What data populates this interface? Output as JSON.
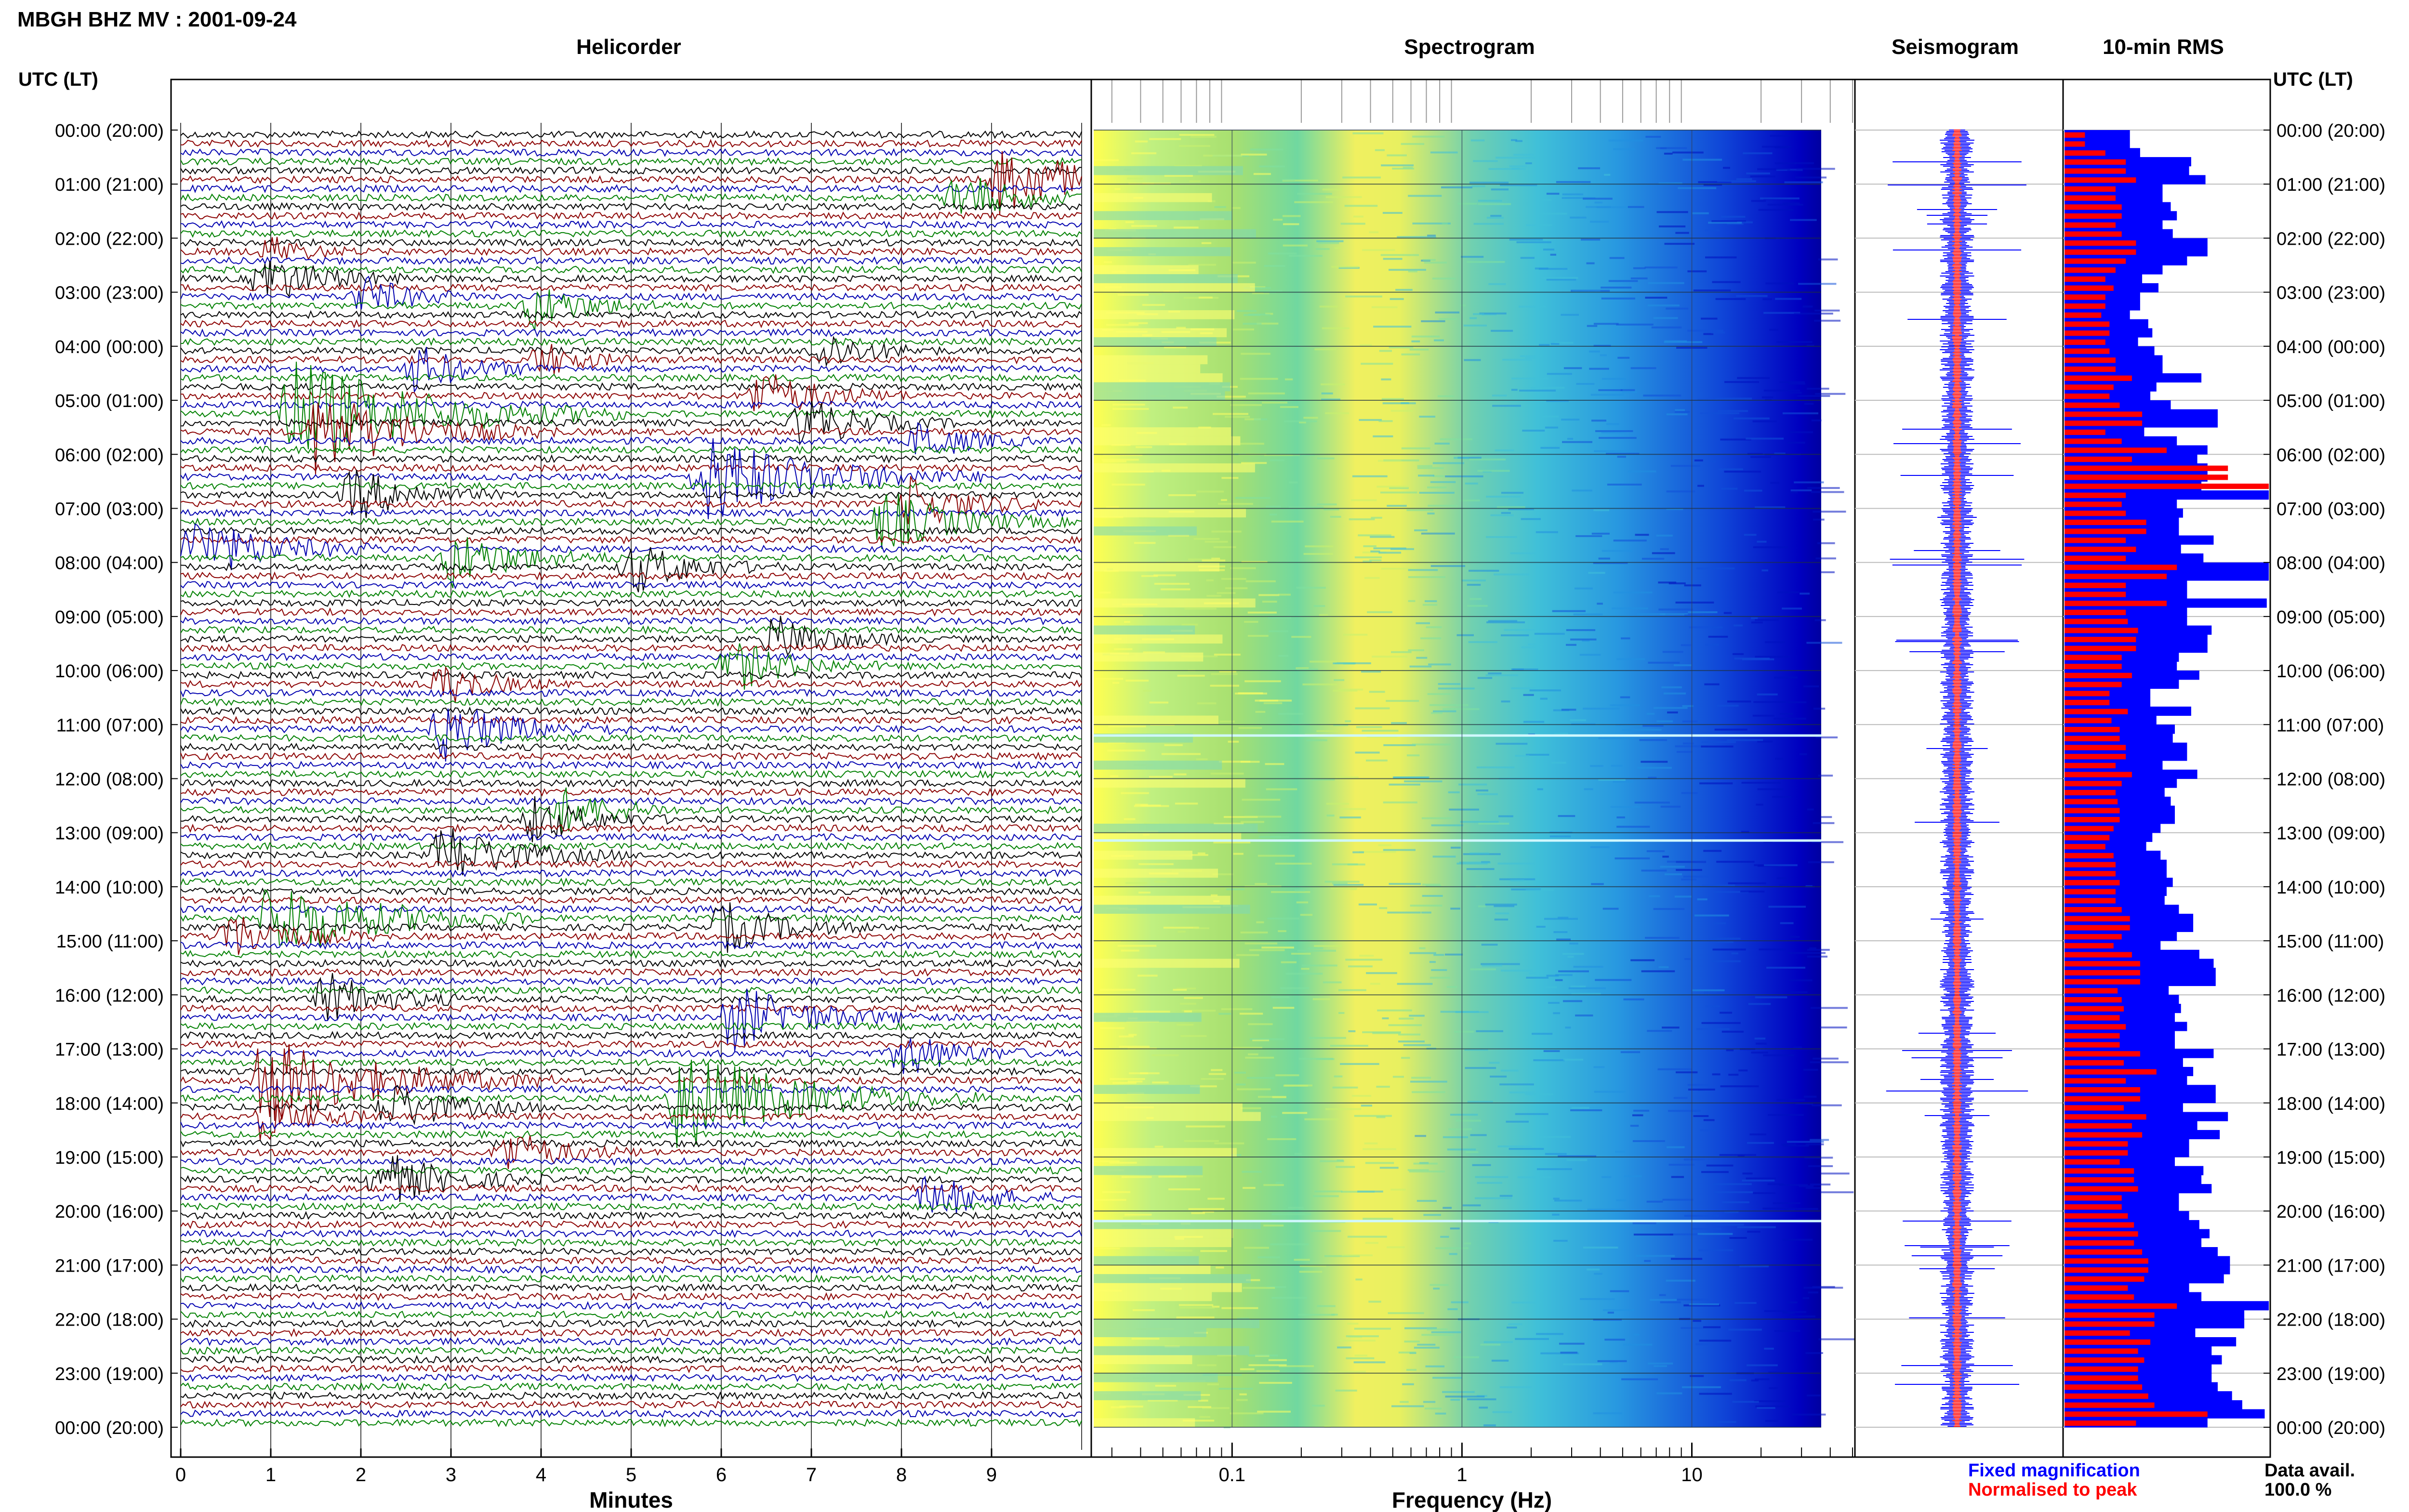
{
  "header": {
    "station_title": "MBGH BHZ MV : 2001-09-24",
    "time_axis_label": "UTC (LT)"
  },
  "panels": {
    "helicorder_title": "Helicorder",
    "spectrogram_title": "Spectrogram",
    "seismogram_title": "Seismogram",
    "rms_title": "10-min RMS"
  },
  "axes": {
    "helicorder_xlabel": "Minutes",
    "spectrogram_xlabel": "Frequency (Hz)"
  },
  "legend": {
    "fixed": "Fixed magnification",
    "normalised": "Normalised to peak",
    "fixed_color": "#0000ff",
    "normalised_color": "#ff0000"
  },
  "footer": {
    "data_avail_label": "Data avail.",
    "data_avail_value": "100.0 %"
  },
  "chart_data": [
    {
      "type": "line",
      "name": "helicorder",
      "title": "Helicorder",
      "xlabel": "Minutes",
      "x_ticks": [
        "0",
        "1",
        "2",
        "3",
        "4",
        "5",
        "6",
        "7",
        "8",
        "9"
      ],
      "xlim": [
        0,
        10
      ],
      "trace_colors": [
        "#000000",
        "#8b0000",
        "#0000b0",
        "#008000"
      ],
      "traces_per_hour": 6,
      "time_labels": [
        "00:00 (20:00)",
        "01:00 (21:00)",
        "02:00 (22:00)",
        "03:00 (23:00)",
        "04:00 (00:00)",
        "05:00 (01:00)",
        "06:00 (02:00)",
        "07:00 (03:00)",
        "08:00 (04:00)",
        "09:00 (05:00)",
        "10:00 (06:00)",
        "11:00 (07:00)",
        "12:00 (08:00)",
        "13:00 (09:00)",
        "14:00 (10:00)",
        "15:00 (11:00)",
        "16:00 (12:00)",
        "17:00 (13:00)",
        "18:00 (14:00)",
        "19:00 (15:00)",
        "20:00 (16:00)",
        "21:00 (17:00)",
        "22:00 (18:00)",
        "23:00 (19:00)",
        "00:00 (20:00)"
      ],
      "events": [
        {
          "row": 5,
          "minute": 9.1,
          "size": 1.4
        },
        {
          "row": 7,
          "minute": 8.6,
          "size": 1.0
        },
        {
          "row": 13,
          "minute": 1.0,
          "size": 0.6
        },
        {
          "row": 16,
          "minute": 0.9,
          "size": 1.0
        },
        {
          "row": 18,
          "minute": 2.0,
          "size": 0.8
        },
        {
          "row": 19,
          "minute": 3.9,
          "size": 0.9
        },
        {
          "row": 24,
          "minute": 7.1,
          "size": 0.8
        },
        {
          "row": 25,
          "minute": 4.0,
          "size": 0.7
        },
        {
          "row": 26,
          "minute": 2.6,
          "size": 0.9
        },
        {
          "row": 29,
          "minute": 6.4,
          "size": 1.0
        },
        {
          "row": 31,
          "minute": 1.2,
          "size": 2.2
        },
        {
          "row": 32,
          "minute": 6.9,
          "size": 1.0
        },
        {
          "row": 33,
          "minute": 1.5,
          "size": 1.6
        },
        {
          "row": 34,
          "minute": 8.2,
          "size": 0.8
        },
        {
          "row": 38,
          "minute": 5.8,
          "size": 1.8
        },
        {
          "row": 40,
          "minute": 1.9,
          "size": 1.0
        },
        {
          "row": 41,
          "minute": 8.1,
          "size": 1.0
        },
        {
          "row": 43,
          "minute": 7.8,
          "size": 1.2
        },
        {
          "row": 46,
          "minute": 0.1,
          "size": 1.3
        },
        {
          "row": 47,
          "minute": 3.0,
          "size": 1.1
        },
        {
          "row": 48,
          "minute": 5.0,
          "size": 1.0
        },
        {
          "row": 56,
          "minute": 6.6,
          "size": 0.9
        },
        {
          "row": 59,
          "minute": 6.1,
          "size": 1.0
        },
        {
          "row": 61,
          "minute": 2.9,
          "size": 0.8
        },
        {
          "row": 66,
          "minute": 2.9,
          "size": 1.2
        },
        {
          "row": 75,
          "minute": 4.2,
          "size": 0.9
        },
        {
          "row": 76,
          "minute": 3.9,
          "size": 0.9
        },
        {
          "row": 80,
          "minute": 2.9,
          "size": 1.2
        },
        {
          "row": 87,
          "minute": 1.0,
          "size": 1.7
        },
        {
          "row": 88,
          "minute": 6.0,
          "size": 1.0
        },
        {
          "row": 89,
          "minute": 0.5,
          "size": 1.0
        },
        {
          "row": 96,
          "minute": 1.6,
          "size": 1.0
        },
        {
          "row": 98,
          "minute": 6.1,
          "size": 1.3
        },
        {
          "row": 102,
          "minute": 8.0,
          "size": 0.9
        },
        {
          "row": 105,
          "minute": 0.9,
          "size": 1.9
        },
        {
          "row": 107,
          "minute": 5.5,
          "size": 2.0
        },
        {
          "row": 108,
          "minute": 2.3,
          "size": 1.0
        },
        {
          "row": 109,
          "minute": 0.9,
          "size": 0.9
        },
        {
          "row": 113,
          "minute": 3.6,
          "size": 0.9
        },
        {
          "row": 116,
          "minute": 2.2,
          "size": 1.1
        },
        {
          "row": 118,
          "minute": 8.3,
          "size": 0.9
        }
      ]
    },
    {
      "type": "heatmap",
      "name": "spectrogram",
      "title": "Spectrogram",
      "xlabel": "Frequency (Hz)",
      "x_scale": "log",
      "x_ticks": [
        "0.1",
        "1",
        "10"
      ],
      "xlim": [
        0.025,
        50
      ],
      "colormap": [
        "#ffff40",
        "#a0e860",
        "#40c8c8",
        "#2090e0",
        "#0000c8"
      ],
      "spectral_shape": "strongest energy 0.3–0.6 Hz (yellow), green/cyan up to ~2 Hz, blue above ~4 Hz, cut off near 35 Hz"
    },
    {
      "type": "line",
      "name": "seismogram",
      "title": "Seismogram",
      "series": [
        {
          "name": "Fixed magnification",
          "color": "#0000ff"
        },
        {
          "name": "Normalised to peak",
          "color": "#ff0000"
        }
      ]
    },
    {
      "type": "bar",
      "name": "rms",
      "title": "10-min RMS",
      "orientation": "horizontal",
      "categories_per_hour": 6,
      "series": [
        {
          "name": "Fixed magnification",
          "color": "#0000ff",
          "values": [
            0.32,
            0.37,
            0.62,
            0.61,
            0.69,
            0.48,
            0.52,
            0.55,
            0.48,
            0.53,
            0.7,
            0.6,
            0.48,
            0.38,
            0.46,
            0.37,
            0.32,
            0.41,
            0.43,
            0.36,
            0.44,
            0.48,
            0.67,
            0.45,
            0.42,
            0.52,
            0.75,
            0.39,
            0.55,
            0.7,
            0.65,
            0.7,
            0.67,
            1.0,
            0.55,
            0.58,
            0.56,
            0.73,
            0.57,
            0.68,
            1.0,
            1.0,
            0.6,
            0.99,
            0.6,
            0.6,
            0.72,
            0.7,
            0.56,
            0.55,
            0.66,
            0.56,
            0.42,
            0.62,
            0.45,
            0.54,
            0.53,
            0.6,
            0.48,
            0.65,
            0.55,
            0.49,
            0.52,
            0.54,
            0.47,
            0.43,
            0.4,
            0.47,
            0.5,
            0.53,
            0.5,
            0.49,
            0.56,
            0.63,
            0.55,
            0.47,
            0.66,
            0.73,
            0.74,
            0.51,
            0.56,
            0.57,
            0.54,
            0.6,
            0.54,
            0.73,
            0.58,
            0.63,
            0.6,
            0.74,
            0.58,
            0.8,
            0.65,
            0.76,
            0.61,
            0.54,
            0.68,
            0.67,
            0.72,
            0.56,
            0.61,
            0.66,
            0.71,
            0.67,
            0.75,
            0.81,
            0.78,
            0.61,
            0.67,
            1.0,
            0.88,
            0.64,
            0.84,
            0.72,
            0.77,
            0.72,
            0.75,
            0.82,
            0.87,
            0.98,
            0.7
          ]
        },
        {
          "name": "Normalised to peak",
          "color": "#ff0000",
          "values": [
            0.1,
            0.2,
            0.3,
            0.3,
            0.35,
            0.25,
            0.28,
            0.28,
            0.25,
            0.28,
            0.35,
            0.3,
            0.25,
            0.2,
            0.24,
            0.2,
            0.18,
            0.22,
            0.22,
            0.2,
            0.22,
            0.25,
            0.33,
            0.24,
            0.22,
            0.27,
            0.38,
            0.2,
            0.28,
            0.5,
            0.33,
            0.8,
            1.0,
            0.3,
            0.28,
            0.3,
            0.4,
            0.3,
            0.35,
            0.3,
            0.55,
            0.5,
            0.3,
            0.5,
            0.3,
            0.31,
            0.36,
            0.35,
            0.28,
            0.28,
            0.33,
            0.28,
            0.22,
            0.31,
            0.23,
            0.27,
            0.27,
            0.3,
            0.25,
            0.33,
            0.28,
            0.25,
            0.26,
            0.27,
            0.24,
            0.22,
            0.2,
            0.24,
            0.25,
            0.27,
            0.25,
            0.25,
            0.28,
            0.32,
            0.28,
            0.24,
            0.33,
            0.37,
            0.37,
            0.26,
            0.28,
            0.29,
            0.27,
            0.3,
            0.27,
            0.37,
            0.29,
            0.45,
            0.3,
            0.37,
            0.29,
            0.4,
            0.33,
            0.38,
            0.31,
            0.27,
            0.34,
            0.34,
            0.36,
            0.28,
            0.31,
            0.34,
            0.36,
            0.34,
            0.38,
            0.41,
            0.39,
            0.31,
            0.34,
            0.55,
            0.44,
            0.32,
            0.42,
            0.36,
            0.39,
            0.36,
            0.38,
            0.41,
            0.44,
            0.7,
            0.35
          ]
        }
      ]
    }
  ]
}
